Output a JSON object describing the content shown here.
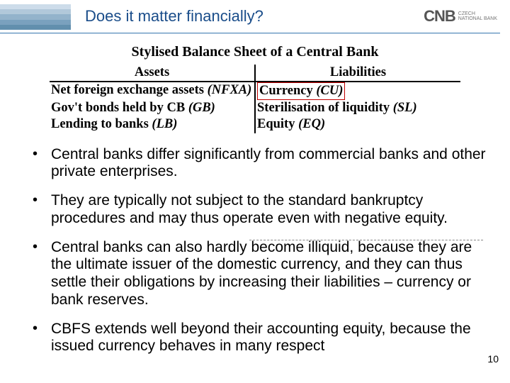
{
  "header": {
    "title": "Does it matter financially?",
    "title_color": "#1a4d8a",
    "logo_mark": "CNB",
    "logo_line1": "CZECH",
    "logo_line2": "NATIONAL BANK",
    "stripe_colors": [
      "#cddcea",
      "#b1c8da",
      "#93b3cb",
      "#7aa1be",
      "#628fad"
    ],
    "rule_color": "#5b91bf"
  },
  "sheet": {
    "title": "Stylised Balance Sheet of a Central Bank",
    "assets_header": "Assets",
    "liabilities_header": "Liabilities",
    "assets": [
      {
        "label": "Net foreign exchange assets",
        "abbr": "(NFXA)"
      },
      {
        "label": "Gov't bonds held by CB",
        "abbr": "(GB)"
      },
      {
        "label": "Lending to banks",
        "abbr": "(LB)"
      }
    ],
    "liabilities": [
      {
        "label": "Currency",
        "abbr": "(CU)",
        "boxed": true,
        "box_color": "#c00000"
      },
      {
        "label": "Sterilisation of liquidity",
        "abbr": "(SL)"
      },
      {
        "label": "Equity",
        "abbr": "(EQ)"
      }
    ],
    "font_family": "Times New Roman",
    "font_weight": "bold",
    "header_fontsize": 20,
    "body_fontsize": 18.5,
    "border_color": "#000000"
  },
  "bullets": [
    "Central banks differ significantly from commercial banks and other private enterprises.",
    "They are typically not subject to the standard bankruptcy procedures and may thus operate even with negative equity.",
    "Central banks can also hardly become illiquid, because they are the ultimate issuer of the domestic currency, and they can thus settle their obligations by increasing their liabilities – currency or bank reserves.",
    "CBFS extends well beyond their accounting equity, because the issued currency behaves in many respect"
  ],
  "bullet_fontsize": 21,
  "bullet_color": "#000000",
  "separator": {
    "style": "dashed",
    "color": "#888888"
  },
  "page_number": "10",
  "background_color": "#ffffff"
}
